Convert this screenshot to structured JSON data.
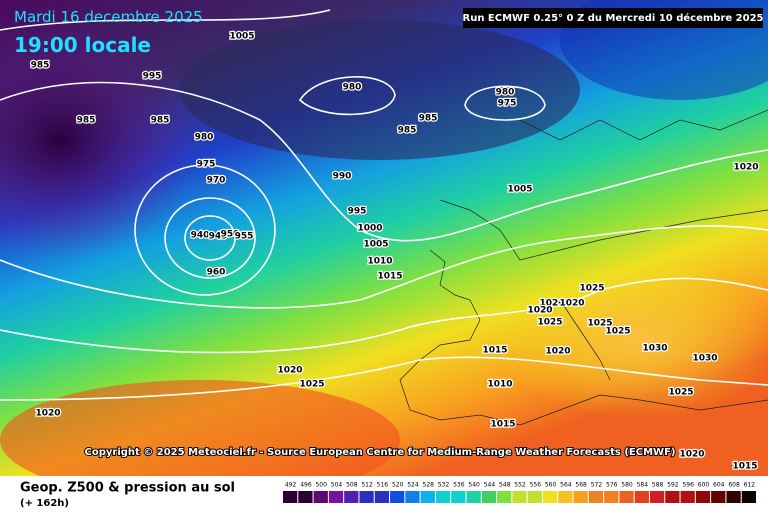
{
  "header": {
    "date": "Mardi 16 decembre 2025",
    "time": "19:00 locale",
    "run": "Run ECMWF 0.25° 0 Z du Mercredi 10 décembre 2025"
  },
  "copyright": "Copyright © 2025 Meteociel.fr - Source European Centre for Medium-Range Weather Forecasts (ECMWF)",
  "isobar_labels": [
    "1005",
    "985",
    "995",
    "985",
    "985",
    "980",
    "980",
    "975",
    "985",
    "985",
    "980",
    "975",
    "970",
    "990",
    "1005",
    "1020",
    "995",
    "1000",
    "1005",
    "940",
    "945",
    "950",
    "955",
    "960",
    "1010",
    "1015",
    "1025",
    "1020",
    "1020",
    "1020",
    "1025",
    "1025",
    "1025",
    "1030",
    "1015",
    "1020",
    "1030",
    "1020",
    "1025",
    "1010",
    "1025",
    "1020",
    "1015",
    "1020",
    "1015"
  ],
  "footer": {
    "title": "Geop. Z500 & pression au sol",
    "lead": "(+ 162h)"
  },
  "scale": [
    "492",
    "496",
    "500",
    "504",
    "508",
    "512",
    "516",
    "520",
    "524",
    "528",
    "532",
    "536",
    "540",
    "544",
    "548",
    "552",
    "556",
    "560",
    "564",
    "568",
    "572",
    "576",
    "580",
    "584",
    "588",
    "592",
    "596",
    "600",
    "604",
    "608",
    "612"
  ]
}
